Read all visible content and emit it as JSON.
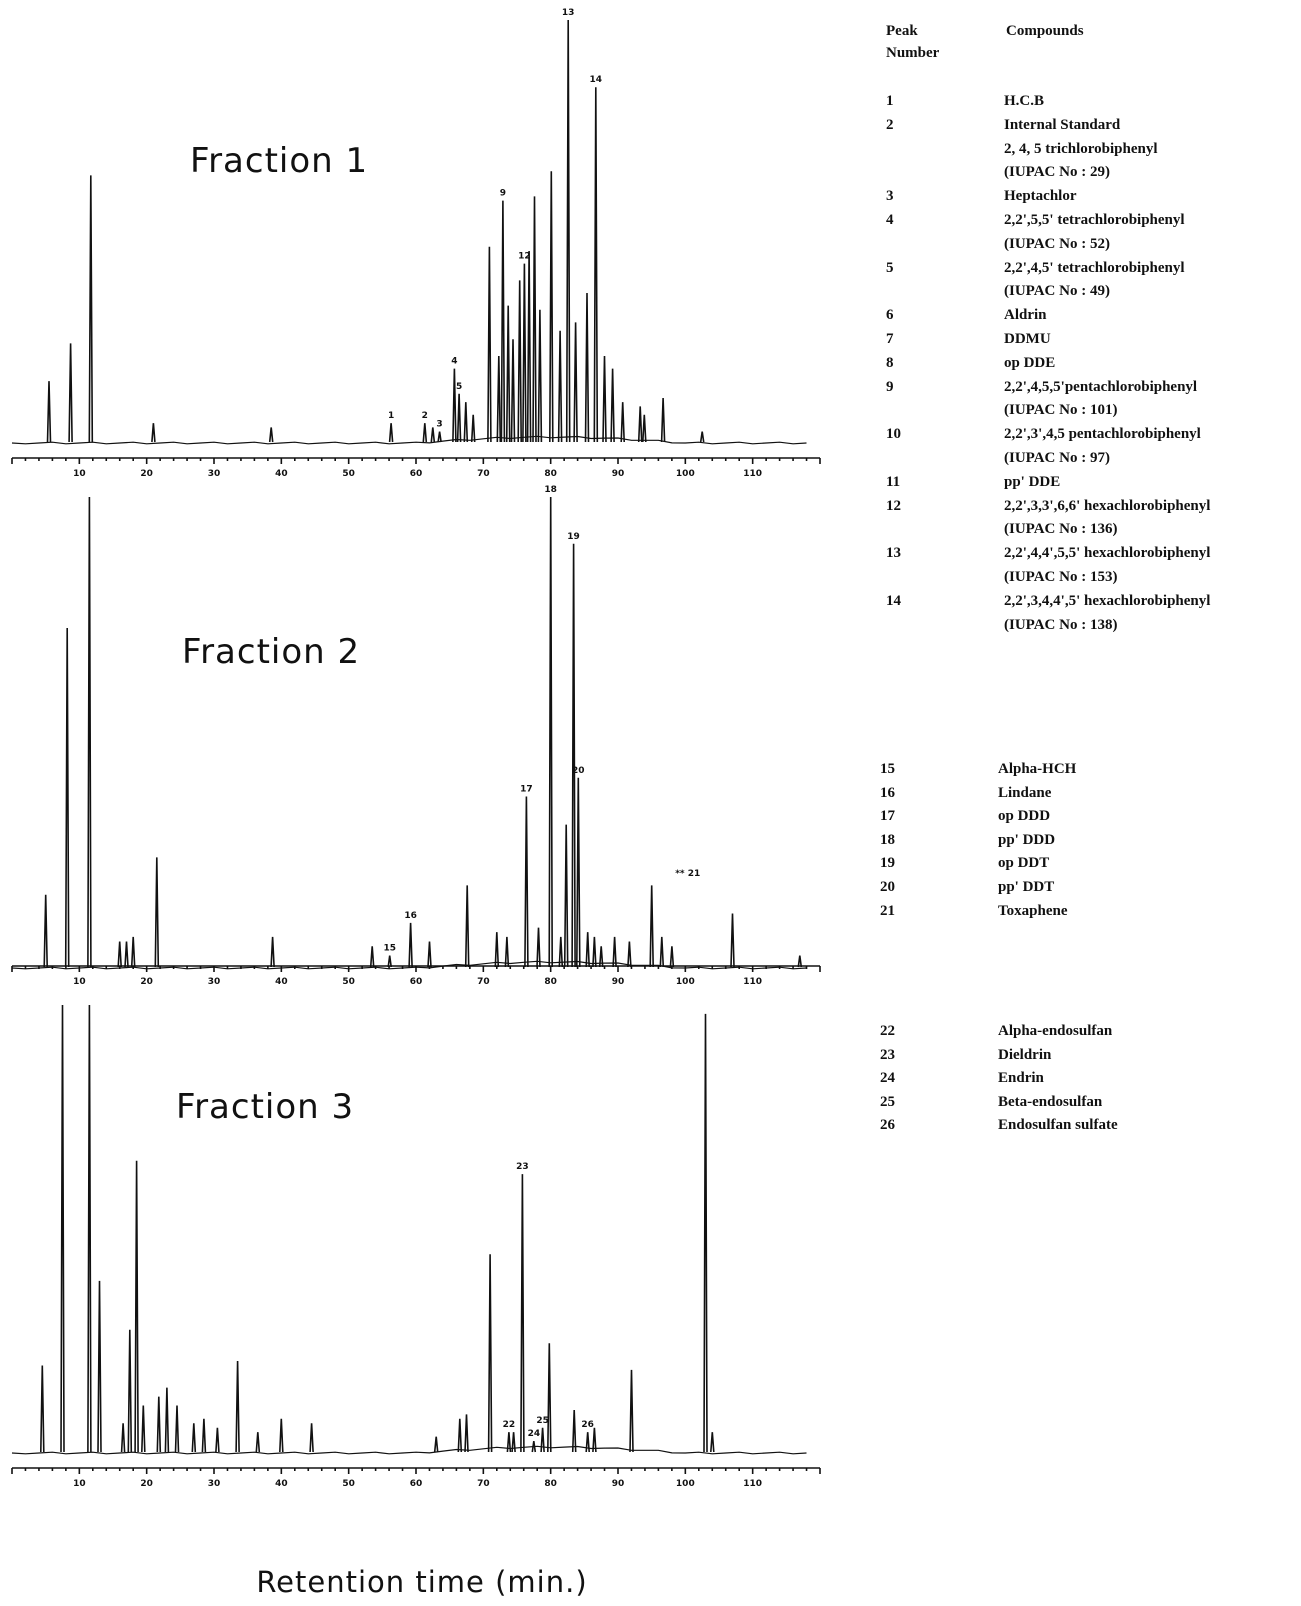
{
  "legend_header": {
    "peak_line1": "Peak",
    "peak_line2": "Number",
    "compounds": "Compounds"
  },
  "legend_groups": [
    {
      "rows": [
        {
          "num": "1",
          "lines": [
            "H.C.B"
          ]
        },
        {
          "num": "2",
          "lines": [
            "Internal Standard",
            "2, 4, 5 trichlorobiphenyl",
            "(IUPAC No : 29)"
          ]
        },
        {
          "num": "3",
          "lines": [
            "Heptachlor"
          ]
        },
        {
          "num": "4",
          "lines": [
            "2,2',5,5' tetrachlorobiphenyl",
            "(IUPAC No : 52)"
          ]
        },
        {
          "num": "5",
          "lines": [
            "2,2',4,5' tetrachlorobiphenyl",
            "(IUPAC No : 49)"
          ]
        },
        {
          "num": "6",
          "lines": [
            "Aldrin"
          ]
        },
        {
          "num": "7",
          "lines": [
            "DDMU"
          ]
        },
        {
          "num": "8",
          "lines": [
            "op DDE"
          ]
        },
        {
          "num": "9",
          "lines": [
            "2,2',4,5,5'pentachlorobiphenyl",
            "(IUPAC No : 101)"
          ]
        },
        {
          "num": "10",
          "lines": [
            "2,2',3',4,5 pentachlorobiphenyl",
            "(IUPAC No : 97)"
          ]
        },
        {
          "num": "11",
          "lines": [
            "pp' DDE"
          ]
        },
        {
          "num": "12",
          "lines": [
            "2,2',3,3',6,6' hexachlorobiphenyl",
            "(IUPAC No : 136)"
          ]
        },
        {
          "num": "13",
          "lines": [
            "2,2',4,4',5,5' hexachlorobiphenyl",
            "(IUPAC No : 153)"
          ]
        },
        {
          "num": "14",
          "lines": [
            "2,2',3,4,4',5' hexachlorobiphenyl",
            "(IUPAC No : 138)"
          ]
        }
      ]
    },
    {
      "rows": [
        {
          "num": "15",
          "lines": [
            "Alpha-HCH"
          ]
        },
        {
          "num": "16",
          "lines": [
            "Lindane"
          ]
        },
        {
          "num": "17",
          "lines": [
            "op DDD"
          ]
        },
        {
          "num": "18",
          "lines": [
            "pp' DDD"
          ]
        },
        {
          "num": "19",
          "lines": [
            "op DDT"
          ]
        },
        {
          "num": "20",
          "lines": [
            "pp' DDT"
          ]
        },
        {
          "num": "21",
          "lines": [
            "Toxaphene"
          ]
        }
      ]
    },
    {
      "rows": [
        {
          "num": "22",
          "lines": [
            "Alpha-endosulfan"
          ]
        },
        {
          "num": "23",
          "lines": [
            "Dieldrin"
          ]
        },
        {
          "num": "24",
          "lines": [
            "Endrin"
          ]
        },
        {
          "num": "25",
          "lines": [
            "Beta-endosulfan"
          ]
        },
        {
          "num": "26",
          "lines": [
            "Endosulfan sulfate"
          ]
        }
      ]
    }
  ],
  "chart_data": [
    {
      "type": "line",
      "title": "Fraction 1",
      "xlabel": "Retention time (min.)",
      "ylabel": "",
      "xlim": [
        0,
        120
      ],
      "ylim": [
        0,
        100
      ],
      "x_ticks": [
        "10",
        "20",
        "30",
        "40",
        "50",
        "60",
        "70",
        "80",
        "90",
        "100",
        "110"
      ],
      "peaks": [
        {
          "x": 5.5,
          "y": 14
        },
        {
          "x": 8.7,
          "y": 23
        },
        {
          "x": 11.7,
          "y": 63
        },
        {
          "x": 21,
          "y": 4
        },
        {
          "x": 38.5,
          "y": 3
        },
        {
          "x": 56.3,
          "y": 4,
          "label": "1"
        },
        {
          "x": 61.3,
          "y": 4,
          "label": "2"
        },
        {
          "x": 62.5,
          "y": 3
        },
        {
          "x": 63.5,
          "y": 2,
          "label": "3"
        },
        {
          "x": 65.7,
          "y": 17,
          "label": "4"
        },
        {
          "x": 66.4,
          "y": 11,
          "label": "5"
        },
        {
          "x": 67.4,
          "y": 9
        },
        {
          "x": 68.5,
          "y": 6
        },
        {
          "x": 70.9,
          "y": 46
        },
        {
          "x": 72.3,
          "y": 20
        },
        {
          "x": 72.9,
          "y": 57,
          "label": "9"
        },
        {
          "x": 73.7,
          "y": 32
        },
        {
          "x": 74.4,
          "y": 24
        },
        {
          "x": 75.4,
          "y": 38
        },
        {
          "x": 76.1,
          "y": 42,
          "label": "12"
        },
        {
          "x": 76.8,
          "y": 45
        },
        {
          "x": 77.6,
          "y": 58
        },
        {
          "x": 78.4,
          "y": 31
        },
        {
          "x": 80.1,
          "y": 64
        },
        {
          "x": 81.4,
          "y": 26
        },
        {
          "x": 82.6,
          "y": 100,
          "label": "13"
        },
        {
          "x": 83.7,
          "y": 28
        },
        {
          "x": 85.4,
          "y": 35
        },
        {
          "x": 86.7,
          "y": 84,
          "label": "14"
        },
        {
          "x": 88.0,
          "y": 20
        },
        {
          "x": 89.2,
          "y": 17
        },
        {
          "x": 90.7,
          "y": 9
        },
        {
          "x": 93.3,
          "y": 8
        },
        {
          "x": 93.9,
          "y": 6
        },
        {
          "x": 96.7,
          "y": 10
        },
        {
          "x": 102.5,
          "y": 2
        }
      ]
    },
    {
      "type": "line",
      "title": "Fraction 2",
      "xlabel": "Retention time (min.)",
      "ylabel": "",
      "xlim": [
        0,
        120
      ],
      "ylim": [
        0,
        100
      ],
      "x_ticks": [
        "10",
        "20",
        "30",
        "40",
        "50",
        "60",
        "70",
        "80",
        "90",
        "100",
        "110"
      ],
      "peaks": [
        {
          "x": 5.0,
          "y": 15
        },
        {
          "x": 8.2,
          "y": 72
        },
        {
          "x": 11.5,
          "y": 100
        },
        {
          "x": 16.0,
          "y": 5
        },
        {
          "x": 17.0,
          "y": 5
        },
        {
          "x": 18.0,
          "y": 6
        },
        {
          "x": 21.5,
          "y": 23
        },
        {
          "x": 38.7,
          "y": 6
        },
        {
          "x": 53.5,
          "y": 4
        },
        {
          "x": 56.1,
          "y": 2,
          "label": "15"
        },
        {
          "x": 59.2,
          "y": 9,
          "label": "16"
        },
        {
          "x": 62.0,
          "y": 5
        },
        {
          "x": 67.6,
          "y": 17
        },
        {
          "x": 72.0,
          "y": 7
        },
        {
          "x": 73.5,
          "y": 6
        },
        {
          "x": 76.4,
          "y": 36,
          "label": "17"
        },
        {
          "x": 78.2,
          "y": 8
        },
        {
          "x": 80.0,
          "y": 100,
          "label": "18"
        },
        {
          "x": 81.5,
          "y": 6
        },
        {
          "x": 82.3,
          "y": 30
        },
        {
          "x": 83.4,
          "y": 90,
          "label": "19"
        },
        {
          "x": 84.1,
          "y": 40,
          "label": "20"
        },
        {
          "x": 85.5,
          "y": 7
        },
        {
          "x": 86.5,
          "y": 6
        },
        {
          "x": 87.5,
          "y": 4
        },
        {
          "x": 89.5,
          "y": 6
        },
        {
          "x": 91.7,
          "y": 5
        },
        {
          "x": 95.0,
          "y": 17
        },
        {
          "x": 96.5,
          "y": 6
        },
        {
          "x": 98.0,
          "y": 4
        },
        {
          "x": 107.0,
          "y": 11
        },
        {
          "x": 117.0,
          "y": 2
        }
      ],
      "annotations": [
        "** 21"
      ]
    },
    {
      "type": "line",
      "title": "Fraction 3",
      "xlabel": "Retention time (min.)",
      "ylabel": "",
      "xlim": [
        0,
        120
      ],
      "ylim": [
        0,
        100
      ],
      "x_ticks": [
        "10",
        "20",
        "30",
        "40",
        "50",
        "60",
        "70",
        "80",
        "90",
        "100",
        "110"
      ],
      "peaks": [
        {
          "x": 4.5,
          "y": 19
        },
        {
          "x": 7.5,
          "y": 100
        },
        {
          "x": 11.5,
          "y": 100
        },
        {
          "x": 13.0,
          "y": 38
        },
        {
          "x": 16.5,
          "y": 6
        },
        {
          "x": 17.5,
          "y": 27
        },
        {
          "x": 18.5,
          "y": 65
        },
        {
          "x": 19.5,
          "y": 10
        },
        {
          "x": 21.8,
          "y": 12
        },
        {
          "x": 23.0,
          "y": 14
        },
        {
          "x": 24.5,
          "y": 10
        },
        {
          "x": 27.0,
          "y": 6
        },
        {
          "x": 28.5,
          "y": 7
        },
        {
          "x": 30.5,
          "y": 5
        },
        {
          "x": 33.5,
          "y": 20
        },
        {
          "x": 36.5,
          "y": 4
        },
        {
          "x": 40.0,
          "y": 7
        },
        {
          "x": 44.5,
          "y": 6
        },
        {
          "x": 63.0,
          "y": 3
        },
        {
          "x": 66.5,
          "y": 7
        },
        {
          "x": 67.5,
          "y": 8
        },
        {
          "x": 71.0,
          "y": 44
        },
        {
          "x": 73.8,
          "y": 4,
          "label": "22"
        },
        {
          "x": 74.5,
          "y": 4
        },
        {
          "x": 75.8,
          "y": 62,
          "label": "23"
        },
        {
          "x": 77.5,
          "y": 2,
          "label": "24"
        },
        {
          "x": 78.8,
          "y": 5,
          "label": "25"
        },
        {
          "x": 79.8,
          "y": 24
        },
        {
          "x": 83.5,
          "y": 9
        },
        {
          "x": 85.5,
          "y": 4,
          "label": "26"
        },
        {
          "x": 86.5,
          "y": 5
        },
        {
          "x": 92.0,
          "y": 18
        },
        {
          "x": 103.0,
          "y": 98
        },
        {
          "x": 104.0,
          "y": 4
        }
      ]
    }
  ]
}
